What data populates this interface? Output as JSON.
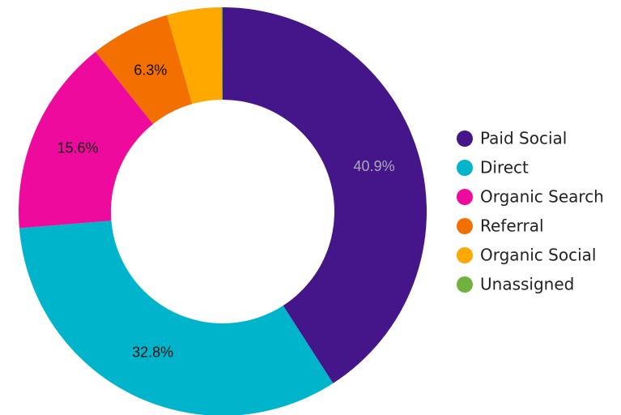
{
  "chart_data": {
    "type": "donut",
    "categories": [
      "Paid Social",
      "Direct",
      "Organic Search",
      "Referral",
      "Organic Social",
      "Unassigned"
    ],
    "values": [
      40.9,
      32.8,
      15.6,
      6.3,
      4.3,
      0.1
    ],
    "value_labels": [
      "40.9%",
      "32.8%",
      "15.6%",
      "6.3%",
      null,
      null
    ],
    "value_label_colors": [
      "#a9a9b8",
      "#111111",
      "#111111",
      "#111111",
      "#111111",
      "#111111"
    ],
    "colors": [
      "#45168a",
      "#00b4cc",
      "#ee0a9c",
      "#f36f00",
      "#ffa800",
      "#6fb33e"
    ],
    "legend": "right"
  }
}
